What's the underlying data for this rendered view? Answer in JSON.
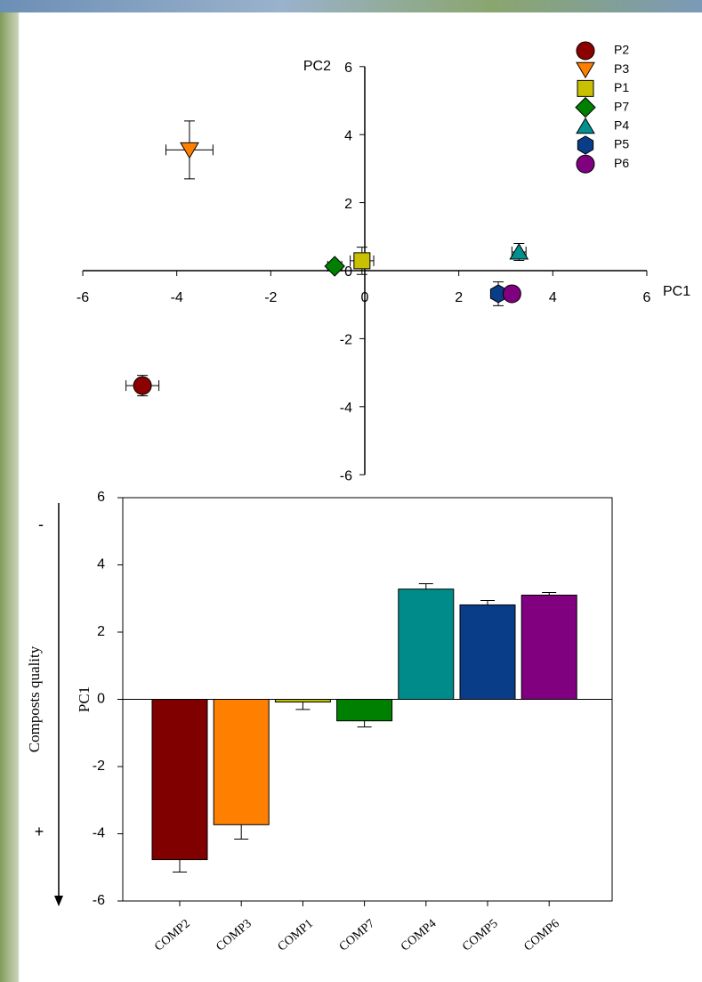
{
  "chart_data": [
    {
      "type": "scatter",
      "x_label": "PC1",
      "y_label": "PC2",
      "xlim": [
        -6,
        6
      ],
      "ylim": [
        -6,
        6
      ],
      "xticks": [
        -6,
        -4,
        -2,
        0,
        2,
        4,
        6
      ],
      "yticks": [
        -6,
        -4,
        -2,
        0,
        2,
        4,
        6
      ],
      "legend": "top-right",
      "series": [
        {
          "name": "P2",
          "color": "#8b0000",
          "marker": "circle",
          "x": [
            -4.73
          ],
          "values": [
            -3.38
          ],
          "xerr": [
            0.35
          ],
          "yerr": [
            0.3
          ]
        },
        {
          "name": "P3",
          "color": "#ff8000",
          "marker": "triangle-down",
          "x": [
            -3.73
          ],
          "values": [
            3.55
          ],
          "xerr": [
            0.5
          ],
          "yerr": [
            0.85
          ]
        },
        {
          "name": "P1",
          "color": "#c8c000",
          "marker": "square",
          "x": [
            -0.06
          ],
          "values": [
            0.29
          ],
          "xerr": [
            0.25
          ],
          "yerr": [
            0.4
          ]
        },
        {
          "name": "P7",
          "color": "#008000",
          "marker": "diamond",
          "x": [
            -0.64
          ],
          "values": [
            0.13
          ],
          "xerr": [
            0.15
          ],
          "yerr": [
            0.1
          ]
        },
        {
          "name": "P4",
          "color": "#009090",
          "marker": "triangle-up",
          "x": [
            3.28
          ],
          "values": [
            0.55
          ],
          "xerr": [
            0.15
          ],
          "yerr": [
            0.25
          ]
        },
        {
          "name": "P5",
          "color": "#0a3d87",
          "marker": "hexagon",
          "x": [
            2.84
          ],
          "values": [
            -0.68
          ],
          "xerr": [
            0.15
          ],
          "yerr": [
            0.35
          ]
        },
        {
          "name": "P6",
          "color": "#800080",
          "marker": "circle",
          "x": [
            3.13
          ],
          "values": [
            -0.68
          ],
          "xerr": [
            0.1
          ],
          "yerr": [
            0.2
          ]
        }
      ]
    },
    {
      "type": "bar",
      "y_label": "PC1",
      "categories": [
        "COMP2",
        "COMP3",
        "COMP1",
        "COMP7",
        "COMP4",
        "COMP5",
        "COMP6"
      ],
      "values": [
        -4.77,
        -3.73,
        -0.08,
        -0.64,
        3.28,
        2.81,
        3.1
      ],
      "error": [
        0.37,
        0.43,
        0.22,
        0.18,
        0.16,
        0.13,
        0.08
      ],
      "colors": [
        "#800000",
        "#ff8000",
        "#c0c000",
        "#008000",
        "#008b8b",
        "#0a3d87",
        "#800080"
      ],
      "ylim": [
        -6,
        6
      ],
      "yticks": [
        -6,
        -4,
        -2,
        0,
        2,
        4,
        6
      ],
      "side_annotation": {
        "label": "Composts quality",
        "top": "-",
        "bottom": "+"
      }
    }
  ]
}
